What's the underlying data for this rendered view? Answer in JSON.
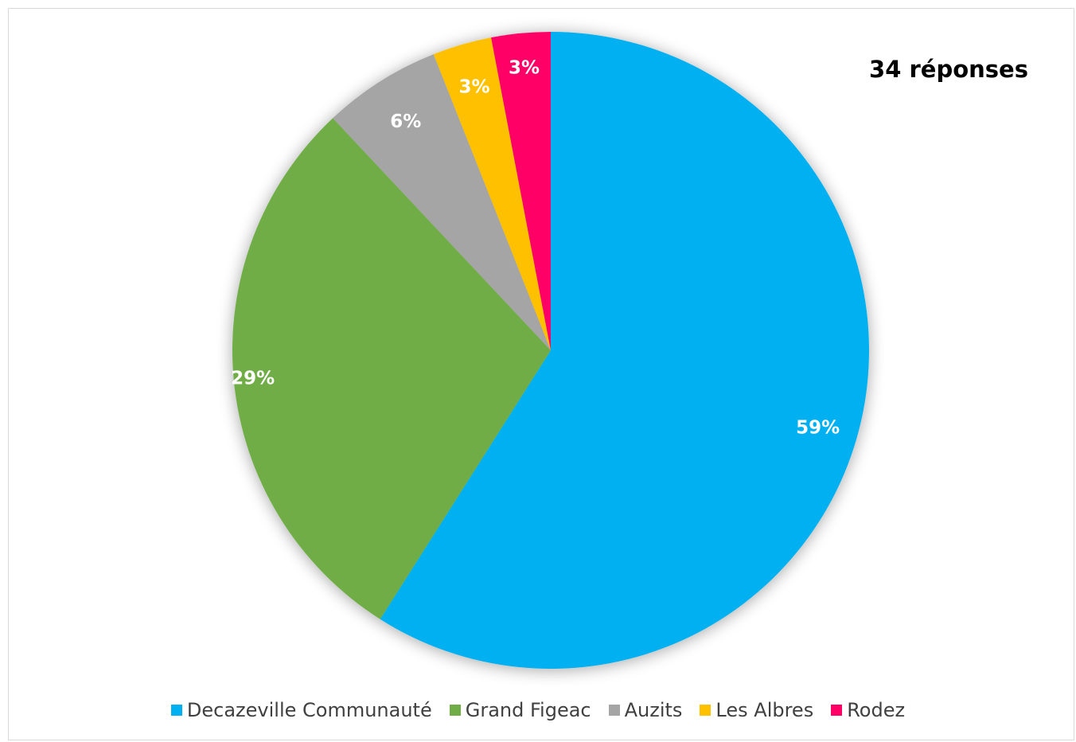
{
  "chart_data": {
    "type": "pie",
    "annotation": "34 réponses",
    "legend_position": "bottom",
    "slices": [
      {
        "name": "Decazeville Communauté",
        "value": 59,
        "label": "59%",
        "color": "#00B0F0"
      },
      {
        "name": "Grand Figeac",
        "value": 29,
        "label": "29%",
        "color": "#70AD47"
      },
      {
        "name": "Auzits",
        "value": 6,
        "label": "6%",
        "color": "#A5A5A5"
      },
      {
        "name": "Les Albres",
        "value": 3,
        "label": "3%",
        "color": "#FFC000"
      },
      {
        "name": "Rodez",
        "value": 3,
        "label": "3%",
        "color": "#FF0066"
      }
    ]
  }
}
